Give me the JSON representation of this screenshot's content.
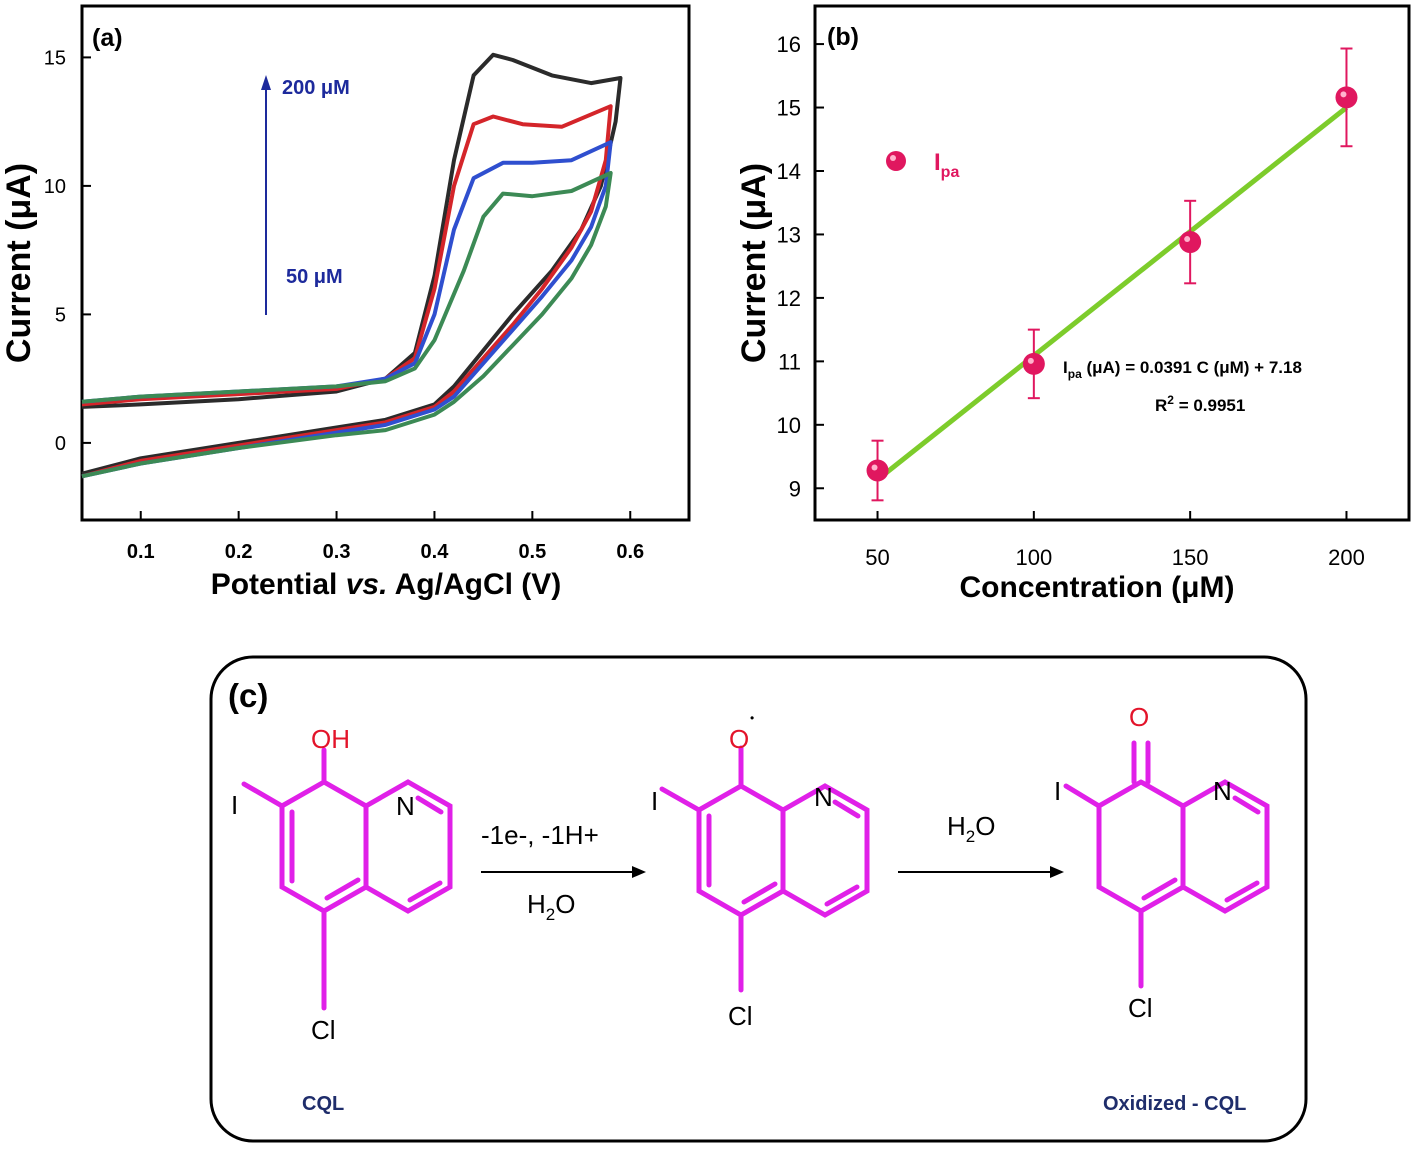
{
  "chart_data": [
    {
      "panel": "(a)",
      "type": "line",
      "xlabel_prefix": "Potential ",
      "xlabel_italic": "vs.",
      "xlabel_suffix": " Ag/AgCl (V)",
      "ylabel": "Current (μA)",
      "xlim": [
        0.04,
        0.66
      ],
      "ylim": [
        -3,
        17
      ],
      "xticks": [
        "0.1",
        "0.2",
        "0.3",
        "0.4",
        "0.5",
        "0.6"
      ],
      "yticks": [
        "0",
        "5",
        "10",
        "15"
      ],
      "annotation_top": "200 μM",
      "annotation_bottom": "50 μM",
      "series": [
        {
          "color": "#2b2b2b",
          "forward": [
            [
              0.04,
              1.4
            ],
            [
              0.1,
              1.5
            ],
            [
              0.2,
              1.7
            ],
            [
              0.3,
              2.0
            ],
            [
              0.35,
              2.5
            ],
            [
              0.38,
              3.5
            ],
            [
              0.4,
              6.5
            ],
            [
              0.42,
              11.0
            ],
            [
              0.44,
              14.3
            ],
            [
              0.46,
              15.1
            ],
            [
              0.48,
              14.9
            ],
            [
              0.52,
              14.3
            ],
            [
              0.56,
              14.0
            ],
            [
              0.59,
              14.2
            ]
          ],
          "reverse": [
            [
              0.59,
              14.2
            ],
            [
              0.585,
              12.5
            ],
            [
              0.57,
              10.0
            ],
            [
              0.55,
              8.3
            ],
            [
              0.52,
              6.7
            ],
            [
              0.48,
              5.0
            ],
            [
              0.45,
              3.6
            ],
            [
              0.42,
              2.2
            ],
            [
              0.4,
              1.5
            ],
            [
              0.35,
              0.9
            ],
            [
              0.3,
              0.6
            ],
            [
              0.2,
              0.0
            ],
            [
              0.1,
              -0.6
            ],
            [
              0.04,
              -1.2
            ]
          ]
        },
        {
          "color": "#d4252a",
          "forward": [
            [
              0.04,
              1.5
            ],
            [
              0.1,
              1.7
            ],
            [
              0.2,
              1.9
            ],
            [
              0.3,
              2.1
            ],
            [
              0.35,
              2.5
            ],
            [
              0.38,
              3.3
            ],
            [
              0.4,
              6.0
            ],
            [
              0.42,
              10.0
            ],
            [
              0.44,
              12.4
            ],
            [
              0.46,
              12.7
            ],
            [
              0.49,
              12.4
            ],
            [
              0.53,
              12.3
            ],
            [
              0.58,
              13.1
            ]
          ],
          "reverse": [
            [
              0.58,
              13.1
            ],
            [
              0.575,
              11.0
            ],
            [
              0.56,
              9.0
            ],
            [
              0.54,
              7.6
            ],
            [
              0.51,
              6.0
            ],
            [
              0.48,
              4.6
            ],
            [
              0.45,
              3.3
            ],
            [
              0.42,
              2.0
            ],
            [
              0.4,
              1.4
            ],
            [
              0.35,
              0.8
            ],
            [
              0.3,
              0.5
            ],
            [
              0.2,
              -0.1
            ],
            [
              0.1,
              -0.7
            ],
            [
              0.04,
              -1.3
            ]
          ]
        },
        {
          "color": "#2f4fcf",
          "forward": [
            [
              0.04,
              1.6
            ],
            [
              0.1,
              1.8
            ],
            [
              0.2,
              2.0
            ],
            [
              0.3,
              2.2
            ],
            [
              0.35,
              2.5
            ],
            [
              0.38,
              3.1
            ],
            [
              0.4,
              5.0
            ],
            [
              0.42,
              8.3
            ],
            [
              0.44,
              10.3
            ],
            [
              0.47,
              10.9
            ],
            [
              0.5,
              10.9
            ],
            [
              0.54,
              11.0
            ],
            [
              0.58,
              11.7
            ]
          ],
          "reverse": [
            [
              0.58,
              11.7
            ],
            [
              0.575,
              10.0
            ],
            [
              0.56,
              8.4
            ],
            [
              0.54,
              7.1
            ],
            [
              0.51,
              5.7
            ],
            [
              0.48,
              4.4
            ],
            [
              0.45,
              3.1
            ],
            [
              0.42,
              1.8
            ],
            [
              0.4,
              1.3
            ],
            [
              0.35,
              0.7
            ],
            [
              0.3,
              0.4
            ],
            [
              0.2,
              -0.2
            ],
            [
              0.1,
              -0.8
            ],
            [
              0.04,
              -1.3
            ]
          ]
        },
        {
          "color": "#3c8a55",
          "forward": [
            [
              0.04,
              1.6
            ],
            [
              0.1,
              1.8
            ],
            [
              0.2,
              2.0
            ],
            [
              0.3,
              2.2
            ],
            [
              0.35,
              2.4
            ],
            [
              0.38,
              2.9
            ],
            [
              0.4,
              4.0
            ],
            [
              0.43,
              6.7
            ],
            [
              0.45,
              8.8
            ],
            [
              0.47,
              9.7
            ],
            [
              0.5,
              9.6
            ],
            [
              0.54,
              9.8
            ],
            [
              0.58,
              10.5
            ]
          ],
          "reverse": [
            [
              0.58,
              10.5
            ],
            [
              0.575,
              9.2
            ],
            [
              0.56,
              7.7
            ],
            [
              0.54,
              6.4
            ],
            [
              0.51,
              5.0
            ],
            [
              0.48,
              3.8
            ],
            [
              0.45,
              2.6
            ],
            [
              0.42,
              1.6
            ],
            [
              0.4,
              1.1
            ],
            [
              0.35,
              0.5
            ],
            [
              0.3,
              0.3
            ],
            [
              0.2,
              -0.2
            ],
            [
              0.1,
              -0.8
            ],
            [
              0.04,
              -1.3
            ]
          ]
        }
      ]
    },
    {
      "panel": "(b)",
      "type": "scatter",
      "xlabel": "Concentration (μM)",
      "ylabel": "Current (μA)",
      "xlim": [
        30,
        220
      ],
      "ylim": [
        8.5,
        16.6
      ],
      "xticks": [
        "50",
        "100",
        "150",
        "200"
      ],
      "yticks": [
        "9",
        "10",
        "11",
        "12",
        "13",
        "14",
        "15",
        "16"
      ],
      "legend_label": "I",
      "legend_sub": "pa",
      "points": [
        {
          "x": 50,
          "y": 9.28,
          "err": 0.47
        },
        {
          "x": 100,
          "y": 10.96,
          "err": 0.54
        },
        {
          "x": 150,
          "y": 12.88,
          "err": 0.65
        },
        {
          "x": 200,
          "y": 15.16,
          "err": 0.77
        }
      ],
      "fit": {
        "slope": 0.0391,
        "intercept": 7.18,
        "x_range": [
          50,
          200
        ]
      },
      "equation_i": "I",
      "equation_sub": "pa",
      "equation_rest": " (μA) = 0.0391 C (μM) + 7.18",
      "r2_prefix": "R",
      "r2_sup": "2",
      "r2_rest": " = 0.9951",
      "point_color": "#e0175f",
      "line_color": "#7dcc2b"
    }
  ],
  "scheme": {
    "panel_label": "(c)",
    "arrow1_top": "-1e-, -1H+",
    "arrow1_bottom_h": "H",
    "arrow1_bottom_sub": "2",
    "arrow1_bottom_o": "O",
    "arrow2_top_h": "H",
    "arrow2_top_sub": "2",
    "arrow2_top_o": "O",
    "mol1": {
      "top": "OH",
      "iodine": "I",
      "nitrogen": "N",
      "chlorine": "Cl",
      "name": "CQL"
    },
    "mol2": {
      "top": "O",
      "radical": "•",
      "iodine": "I",
      "nitrogen": "N",
      "chlorine": "Cl"
    },
    "mol3": {
      "top": "O",
      "iodine": "I",
      "nitrogen": "N",
      "chlorine": "Cl",
      "name": "Oxidized - CQL"
    },
    "bond_color": "#e020e8",
    "oxygen_color": "#e3142a",
    "label_color": "#1f2d6b"
  }
}
